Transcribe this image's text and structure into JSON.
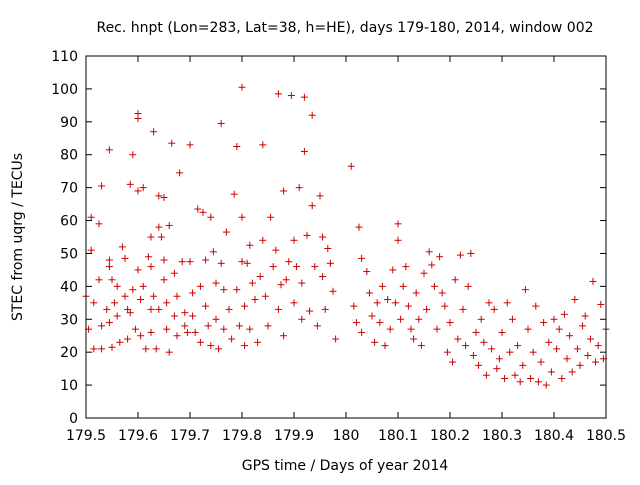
{
  "chart_data": {
    "type": "scatter",
    "title": "Rec. hnpt (Lon=283, Lat=38, h=HE), days 179-180, 2014, window 002",
    "xlabel": "GPS time / Days of year 2014",
    "ylabel": "STEC from uqrg / TECUs",
    "xlim": [
      179.5,
      180.5
    ],
    "ylim": [
      0,
      110
    ],
    "xticks": [
      "179.5",
      "179.6",
      "179.7",
      "179.8",
      "179.9",
      "180",
      "180.1",
      "180.2",
      "180.3",
      "180.4",
      "180.5"
    ],
    "yticks": [
      "0",
      "10",
      "20",
      "30",
      "40",
      "50",
      "60",
      "70",
      "80",
      "90",
      "100",
      "110"
    ],
    "grid": false,
    "marker": "+",
    "marker_color": "#cc0000",
    "points": [
      [
        179.5,
        37
      ],
      [
        179.505,
        27
      ],
      [
        179.51,
        61
      ],
      [
        179.51,
        51
      ],
      [
        179.515,
        35
      ],
      [
        179.515,
        21
      ],
      [
        179.525,
        59
      ],
      [
        179.525,
        42
      ],
      [
        179.53,
        70.5
      ],
      [
        179.53,
        28
      ],
      [
        179.53,
        21
      ],
      [
        179.54,
        33
      ],
      [
        179.545,
        81.5
      ],
      [
        179.545,
        48
      ],
      [
        179.545,
        46
      ],
      [
        179.545,
        29
      ],
      [
        179.55,
        42
      ],
      [
        179.55,
        21.5
      ],
      [
        179.555,
        35
      ],
      [
        179.56,
        40
      ],
      [
        179.56,
        31
      ],
      [
        179.565,
        23
      ],
      [
        179.57,
        52
      ],
      [
        179.575,
        48.5
      ],
      [
        179.575,
        37
      ],
      [
        179.58,
        33
      ],
      [
        179.58,
        24
      ],
      [
        179.585,
        71
      ],
      [
        179.585,
        32
      ],
      [
        179.59,
        80
      ],
      [
        179.59,
        39
      ],
      [
        179.595,
        27
      ],
      [
        179.6,
        92.5
      ],
      [
        179.6,
        91
      ],
      [
        179.6,
        69
      ],
      [
        179.6,
        45
      ],
      [
        179.605,
        36
      ],
      [
        179.605,
        25
      ],
      [
        179.61,
        70
      ],
      [
        179.61,
        40
      ],
      [
        179.615,
        21
      ],
      [
        179.62,
        49
      ],
      [
        179.625,
        55
      ],
      [
        179.625,
        46
      ],
      [
        179.625,
        33
      ],
      [
        179.625,
        26
      ],
      [
        179.63,
        87
      ],
      [
        179.63,
        37
      ],
      [
        179.635,
        21
      ],
      [
        179.64,
        67.5
      ],
      [
        179.64,
        58
      ],
      [
        179.64,
        33
      ],
      [
        179.645,
        55
      ],
      [
        179.65,
        67
      ],
      [
        179.65,
        48
      ],
      [
        179.65,
        42
      ],
      [
        179.655,
        35
      ],
      [
        179.655,
        27
      ],
      [
        179.66,
        58.5
      ],
      [
        179.66,
        20
      ],
      [
        179.665,
        83.5
      ],
      [
        179.67,
        44
      ],
      [
        179.67,
        31
      ],
      [
        179.675,
        37
      ],
      [
        179.675,
        25
      ],
      [
        179.68,
        74.5
      ],
      [
        179.685,
        47.5
      ],
      [
        179.69,
        32
      ],
      [
        179.69,
        28
      ],
      [
        179.695,
        26
      ],
      [
        179.7,
        83
      ],
      [
        179.7,
        47.5
      ],
      [
        179.705,
        38
      ],
      [
        179.705,
        31
      ],
      [
        179.71,
        26
      ],
      [
        179.715,
        63.5
      ],
      [
        179.72,
        40
      ],
      [
        179.72,
        23
      ],
      [
        179.725,
        62.5
      ],
      [
        179.73,
        48
      ],
      [
        179.73,
        34
      ],
      [
        179.735,
        28
      ],
      [
        179.74,
        61
      ],
      [
        179.74,
        22
      ],
      [
        179.745,
        50.5
      ],
      [
        179.75,
        41
      ],
      [
        179.75,
        30
      ],
      [
        179.755,
        21
      ],
      [
        179.76,
        89.5
      ],
      [
        179.76,
        47
      ],
      [
        179.765,
        39
      ],
      [
        179.765,
        27
      ],
      [
        179.77,
        56.5
      ],
      [
        179.775,
        33
      ],
      [
        179.78,
        24
      ],
      [
        179.785,
        68
      ],
      [
        179.79,
        82.5
      ],
      [
        179.79,
        39
      ],
      [
        179.795,
        28
      ],
      [
        179.8,
        100.5
      ],
      [
        179.8,
        61
      ],
      [
        179.8,
        47.5
      ],
      [
        179.805,
        34
      ],
      [
        179.805,
        22
      ],
      [
        179.81,
        47
      ],
      [
        179.815,
        52.5
      ],
      [
        179.815,
        27
      ],
      [
        179.82,
        41
      ],
      [
        179.825,
        36
      ],
      [
        179.83,
        23
      ],
      [
        179.835,
        43
      ],
      [
        179.84,
        83
      ],
      [
        179.84,
        54
      ],
      [
        179.845,
        37
      ],
      [
        179.85,
        28
      ],
      [
        179.855,
        61
      ],
      [
        179.86,
        46
      ],
      [
        179.865,
        51
      ],
      [
        179.87,
        98.5
      ],
      [
        179.87,
        33
      ],
      [
        179.875,
        40.5
      ],
      [
        179.88,
        69
      ],
      [
        179.88,
        25
      ],
      [
        179.885,
        42
      ],
      [
        179.89,
        47.5
      ],
      [
        179.895,
        98
      ],
      [
        179.9,
        54
      ],
      [
        179.9,
        35
      ],
      [
        179.905,
        46
      ],
      [
        179.91,
        70
      ],
      [
        179.915,
        41
      ],
      [
        179.915,
        30
      ],
      [
        179.92,
        97.5
      ],
      [
        179.92,
        81
      ],
      [
        179.925,
        55.5
      ],
      [
        179.93,
        32.5
      ],
      [
        179.935,
        64.5
      ],
      [
        179.935,
        92
      ],
      [
        179.94,
        46
      ],
      [
        179.945,
        28
      ],
      [
        179.95,
        67.5
      ],
      [
        179.955,
        55
      ],
      [
        179.955,
        43
      ],
      [
        179.96,
        33
      ],
      [
        179.965,
        51.5
      ],
      [
        179.97,
        47
      ],
      [
        179.975,
        38.5
      ],
      [
        179.98,
        24
      ],
      [
        180.01,
        76.5
      ],
      [
        180.015,
        34
      ],
      [
        180.02,
        29
      ],
      [
        180.025,
        58
      ],
      [
        180.03,
        48.5
      ],
      [
        180.03,
        26
      ],
      [
        180.04,
        44.5
      ],
      [
        180.045,
        38
      ],
      [
        180.05,
        31
      ],
      [
        180.055,
        23
      ],
      [
        180.06,
        35
      ],
      [
        180.065,
        29
      ],
      [
        180.07,
        40
      ],
      [
        180.075,
        22
      ],
      [
        180.08,
        36
      ],
      [
        180.085,
        27
      ],
      [
        180.09,
        45
      ],
      [
        180.095,
        35
      ],
      [
        180.1,
        59
      ],
      [
        180.1,
        54
      ],
      [
        180.105,
        30
      ],
      [
        180.11,
        40
      ],
      [
        180.115,
        46
      ],
      [
        180.12,
        34
      ],
      [
        180.125,
        27
      ],
      [
        180.13,
        24
      ],
      [
        180.135,
        38
      ],
      [
        180.14,
        30
      ],
      [
        180.145,
        22
      ],
      [
        180.15,
        44
      ],
      [
        180.155,
        33
      ],
      [
        180.16,
        50.5
      ],
      [
        180.165,
        46.5
      ],
      [
        180.17,
        40
      ],
      [
        180.175,
        27
      ],
      [
        180.18,
        49
      ],
      [
        180.185,
        38
      ],
      [
        180.19,
        34
      ],
      [
        180.195,
        20
      ],
      [
        180.2,
        29
      ],
      [
        180.205,
        17
      ],
      [
        180.21,
        42
      ],
      [
        180.215,
        24
      ],
      [
        180.22,
        49.5
      ],
      [
        180.225,
        33
      ],
      [
        180.23,
        22
      ],
      [
        180.235,
        40
      ],
      [
        180.24,
        50
      ],
      [
        180.245,
        19
      ],
      [
        180.25,
        26
      ],
      [
        180.255,
        16
      ],
      [
        180.26,
        30
      ],
      [
        180.265,
        23
      ],
      [
        180.27,
        13
      ],
      [
        180.275,
        35
      ],
      [
        180.28,
        21
      ],
      [
        180.285,
        33
      ],
      [
        180.29,
        15
      ],
      [
        180.295,
        18
      ],
      [
        180.3,
        26
      ],
      [
        180.305,
        12
      ],
      [
        180.31,
        35
      ],
      [
        180.315,
        20
      ],
      [
        180.32,
        30
      ],
      [
        180.325,
        13
      ],
      [
        180.33,
        22
      ],
      [
        180.335,
        11
      ],
      [
        180.34,
        16
      ],
      [
        180.345,
        39
      ],
      [
        180.35,
        27
      ],
      [
        180.355,
        12
      ],
      [
        180.36,
        20
      ],
      [
        180.365,
        34
      ],
      [
        180.37,
        11
      ],
      [
        180.375,
        17
      ],
      [
        180.38,
        29
      ],
      [
        180.385,
        10
      ],
      [
        180.39,
        23
      ],
      [
        180.395,
        14
      ],
      [
        180.4,
        30
      ],
      [
        180.405,
        21
      ],
      [
        180.41,
        27
      ],
      [
        180.415,
        12
      ],
      [
        180.42,
        31.5
      ],
      [
        180.425,
        18
      ],
      [
        180.43,
        25
      ],
      [
        180.435,
        14
      ],
      [
        180.44,
        36
      ],
      [
        180.445,
        21
      ],
      [
        180.45,
        16
      ],
      [
        180.455,
        28
      ],
      [
        180.46,
        31
      ],
      [
        180.465,
        19
      ],
      [
        180.47,
        24
      ],
      [
        180.475,
        41.5
      ],
      [
        180.48,
        17
      ],
      [
        180.485,
        22
      ],
      [
        180.49,
        34.5
      ],
      [
        180.495,
        18
      ],
      [
        180.5,
        27
      ]
    ]
  }
}
